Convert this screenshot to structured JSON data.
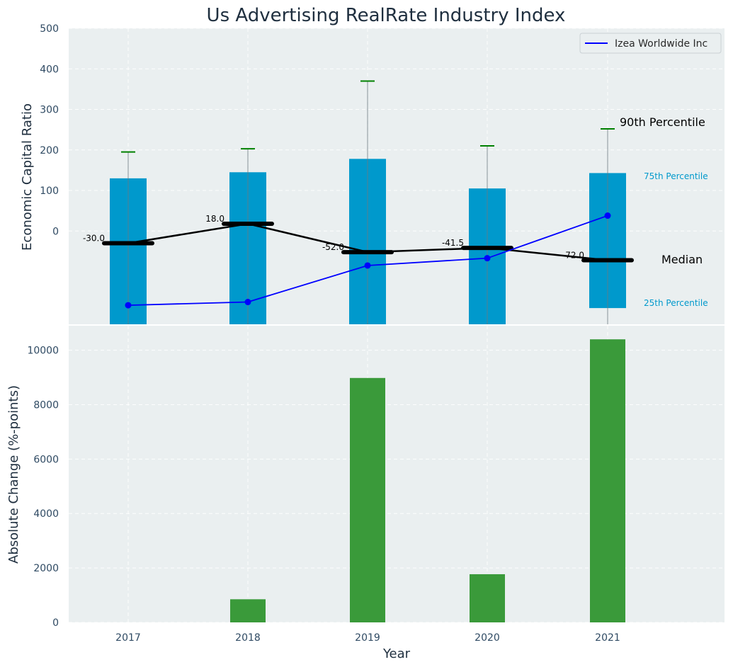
{
  "chart_data": [
    {
      "type": "bar",
      "title": "Us Advertising RealRate Industry Index",
      "xlabel": "",
      "ylabel": "Economic Capital Ratio",
      "ylim": [
        -230,
        500
      ],
      "yticks": [
        0,
        100,
        200,
        300,
        400,
        500
      ],
      "categories": [
        "2017",
        "2018",
        "2019",
        "2020",
        "2021"
      ],
      "percentile_25": [
        -230,
        -230,
        -230,
        -230,
        -190
      ],
      "percentile_75": [
        130,
        145,
        178,
        105,
        143
      ],
      "percentile_90": [
        195,
        203,
        370,
        210,
        252
      ],
      "median": [
        -30.0,
        18.0,
        -52.0,
        -41.5,
        -72.0
      ],
      "median_labels": [
        "-30.0",
        "18.0",
        "-52.0",
        "-41.5",
        "-72.0"
      ],
      "series": [
        {
          "name": "Izea Worldwide Inc",
          "values": [
            -183,
            -175,
            -85,
            -67,
            38
          ]
        }
      ],
      "annotations": {
        "p90": "90th Percentile",
        "p75": "75th Percentile",
        "median": "Median",
        "p25": "25th Percentile"
      },
      "legend": "top-right",
      "grid": true
    },
    {
      "type": "bar",
      "xlabel": "Year",
      "ylabel": "Absolute Change (%-points)",
      "ylim": [
        0,
        10900
      ],
      "yticks": [
        0,
        2000,
        4000,
        6000,
        8000,
        10000
      ],
      "categories": [
        "2017",
        "2018",
        "2019",
        "2020",
        "2021"
      ],
      "values": [
        0,
        850,
        8980,
        1770,
        10400
      ],
      "grid": true
    }
  ],
  "colors": {
    "box": "#0099cc",
    "whisker_cap": "#008000",
    "median_line": "#000000",
    "series_line": "#0000ff",
    "change_bar": "#3a9a3a",
    "plot_bg": "#eaeff0"
  }
}
